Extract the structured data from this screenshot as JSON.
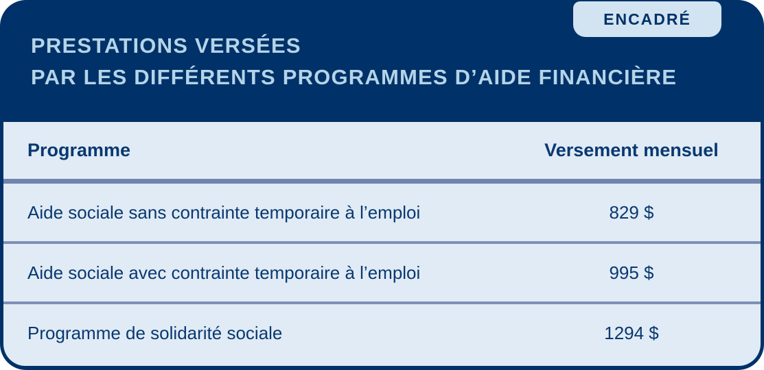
{
  "badge": {
    "label": "ENCADRÉ"
  },
  "title": {
    "line1": "PRESTATIONS VERSÉES",
    "line2": "PAR LES DIFFÉRENTS PROGRAMMES D’AIDE FINANCIÈRE"
  },
  "table": {
    "columns": [
      {
        "label": "Programme"
      },
      {
        "label": "Versement mensuel"
      }
    ],
    "rows": [
      {
        "program": "Aide sociale sans contrainte temporaire à l’emploi",
        "amount": "829 $"
      },
      {
        "program": "Aide sociale avec contrainte temporaire à l’emploi",
        "amount": "995 $"
      },
      {
        "program": "Programme de solidarité sociale",
        "amount": "1294 $"
      }
    ]
  },
  "colors": {
    "navy": "#003168",
    "table-bg": "#e0ebf5",
    "badge-bg": "#d2e4f1",
    "title-blue": "#b4d4e8",
    "text-navy": "#0a3870",
    "rule-thick": "#7184ae",
    "rule-thin": "#7e90b6"
  }
}
